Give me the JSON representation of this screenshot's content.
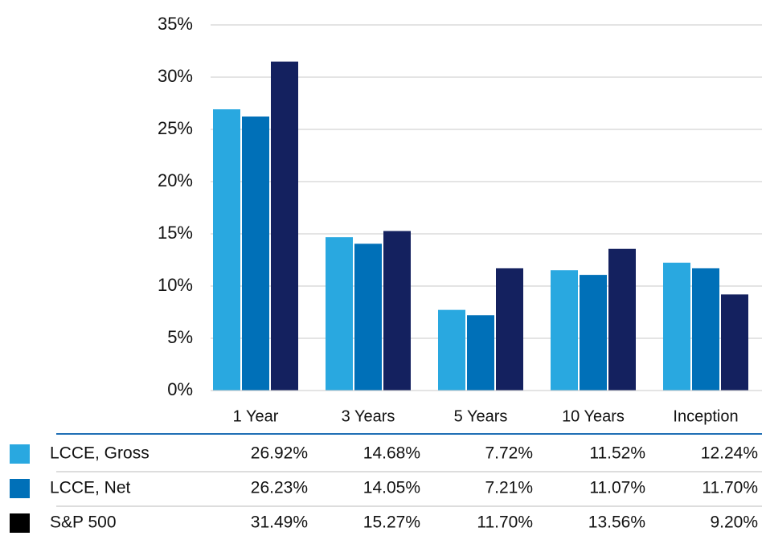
{
  "chart_data": {
    "type": "bar",
    "categories": [
      "1 Year",
      "3 Years",
      "5 Years",
      "10 Years",
      "Inception"
    ],
    "series": [
      {
        "name": "LCCE, Gross",
        "color": "#29a8e0",
        "swatch_color": "#29a8e0",
        "values": [
          26.92,
          14.68,
          7.72,
          11.52,
          12.24
        ],
        "value_labels": [
          "26.92%",
          "14.68%",
          "7.72%",
          "11.52%",
          "12.24%"
        ]
      },
      {
        "name": "LCCE, Net",
        "color": "#0070b8",
        "swatch_color": "#0070b8",
        "values": [
          26.23,
          14.05,
          7.21,
          11.07,
          11.7
        ],
        "value_labels": [
          "26.23%",
          "14.05%",
          "7.21%",
          "11.07%",
          "11.70%"
        ]
      },
      {
        "name": "S&P 500",
        "color": "#14215f",
        "swatch_color": "#000000",
        "values": [
          31.49,
          15.27,
          11.7,
          13.56,
          9.2
        ],
        "value_labels": [
          "31.49%",
          "15.27%",
          "11.70%",
          "13.56%",
          "9.20%"
        ]
      }
    ],
    "ylim": [
      0,
      35
    ],
    "yticks": [
      {
        "value": 0,
        "label": "0%"
      },
      {
        "value": 5,
        "label": "5%"
      },
      {
        "value": 10,
        "label": "10%"
      },
      {
        "value": 15,
        "label": "15%"
      },
      {
        "value": 20,
        "label": "20%"
      },
      {
        "value": 25,
        "label": "25%"
      },
      {
        "value": 30,
        "label": "30%"
      },
      {
        "value": 35,
        "label": "35%"
      }
    ],
    "grid": true
  }
}
